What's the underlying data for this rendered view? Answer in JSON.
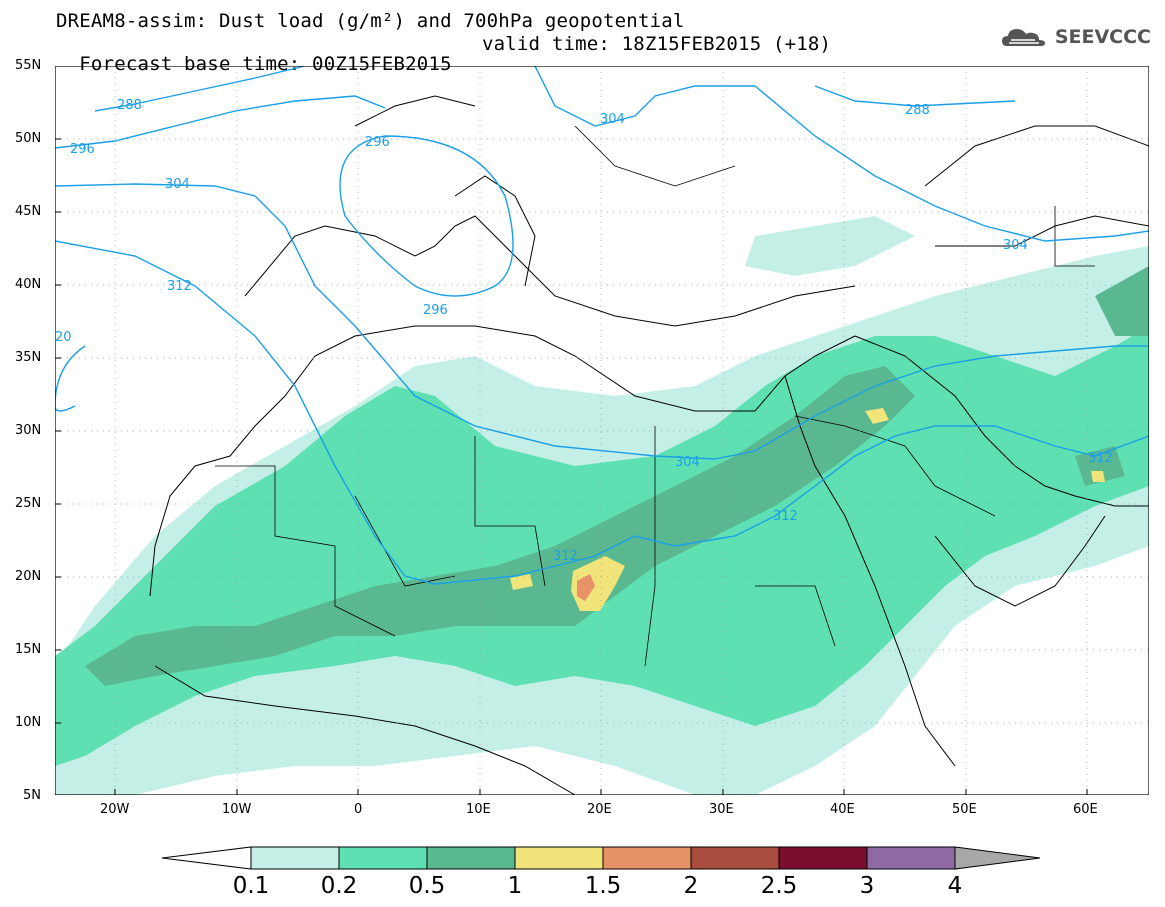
{
  "header": {
    "line1": "DREAM8-assim: Dust load (g/m²) and 700hPa geopotential",
    "line2_left": "Forecast base time: 00Z15FEB2015",
    "line2_right": "valid time: 18Z15FEB2015 (+18)"
  },
  "logo": {
    "text": "SEEVCCC",
    "icon": "cloud-icon"
  },
  "map": {
    "lat_labels": [
      "55N",
      "50N",
      "45N",
      "40N",
      "35N",
      "30N",
      "25N",
      "20N",
      "15N",
      "10N",
      "5N"
    ],
    "lon_labels": [
      "20W",
      "10W",
      "0",
      "10E",
      "20E",
      "30E",
      "40E",
      "50E",
      "60E"
    ],
    "contour_labels": [
      "288",
      "296",
      "304",
      "312",
      "296",
      "304",
      "312",
      "20",
      "288",
      "296",
      "304",
      "304",
      "312",
      "312"
    ]
  },
  "colorbar": {
    "levels": [
      "0.1",
      "0.2",
      "0.5",
      "1",
      "1.5",
      "2",
      "2.5",
      "3",
      "4"
    ],
    "colors": [
      "#c4efe6",
      "#5fe0b3",
      "#5ab891",
      "#f0e47a",
      "#e8926a",
      "#a84d3f",
      "#7a0e2e",
      "#8e6aa2",
      "#a8a8a8"
    ]
  },
  "colors": {
    "contour": "#1a9fe8",
    "dust_light": "#c4efe6",
    "dust_mid": "#5fe0b3",
    "dust_dark": "#5ab891",
    "dust_yellow": "#f0e47a",
    "dust_orange": "#e8926a"
  }
}
